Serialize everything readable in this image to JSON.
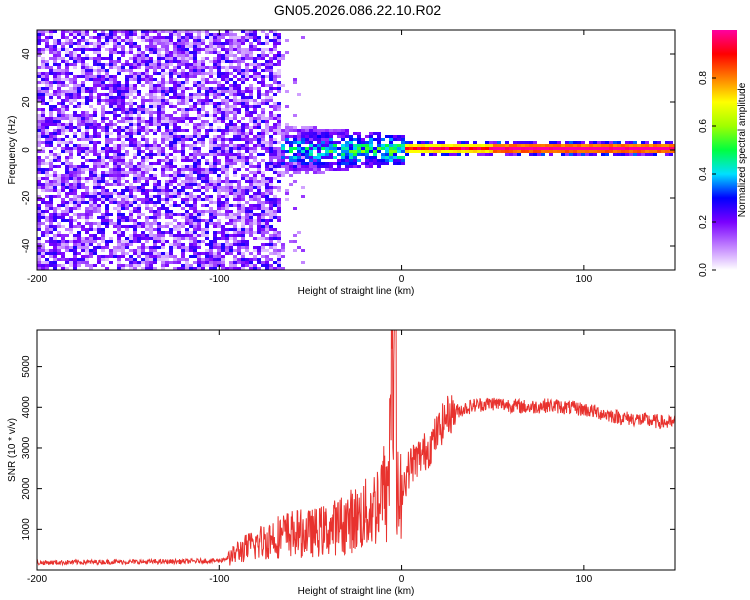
{
  "title": "GN05.2026.086.22.10.R02",
  "colors": {
    "snr_line": "#e8322e",
    "frame": "#000000",
    "background": "#ffffff"
  },
  "chart_data": [
    {
      "type": "heatmap",
      "id": "spectrogram",
      "xlabel": "Height of straight line (km)",
      "ylabel": "Frequency (Hz)",
      "xlim": [
        -200,
        150
      ],
      "ylim": [
        -50,
        50
      ],
      "x_ticks": [
        -200,
        -100,
        0,
        100
      ],
      "x_tick_labels": [
        "-200",
        "-100",
        "0",
        "100"
      ],
      "y_ticks": [
        -40,
        -20,
        0,
        20,
        40
      ],
      "y_tick_labels": [
        "-40",
        "-20",
        "0",
        "20",
        "40"
      ],
      "colorbar": {
        "label": "Normalized spectral amplitude",
        "range": [
          0,
          1
        ],
        "ticks": [
          0,
          0.2,
          0.4,
          0.6,
          0.8
        ],
        "tick_labels": [
          "0.0",
          "0.2",
          "0.4",
          "0.6",
          "0.8"
        ],
        "colormap": [
          "#ffffff",
          "#c080ff",
          "#7a00ff",
          "#0000ff",
          "#00e0ff",
          "#00ff40",
          "#a0ff00",
          "#ffff00",
          "#ff8000",
          "#ff0000",
          "#ff00a0"
        ]
      },
      "regions": [
        {
          "x_range": [
            -200,
            -67
          ],
          "freq_range": [
            -50,
            50
          ],
          "amplitude": "noise 0.05-0.25"
        },
        {
          "x_range": [
            -67,
            0
          ],
          "freq_range": [
            -12,
            8
          ],
          "amplitude": "0.2-0.5 around 0 Hz"
        },
        {
          "x_range": [
            0,
            150
          ],
          "freq_range": [
            -2,
            4
          ],
          "amplitude": "0.6-1.0 narrow tone near 1-2 Hz"
        }
      ]
    },
    {
      "type": "line",
      "id": "snr",
      "xlabel": "Height of straight line (km)",
      "ylabel": "SNR (10 * v/v)",
      "xlim": [
        -200,
        150
      ],
      "ylim": [
        0,
        5900
      ],
      "x_ticks": [
        -200,
        -100,
        0,
        100
      ],
      "x_tick_labels": [
        "-200",
        "-100",
        "0",
        "100"
      ],
      "y_ticks": [
        1000,
        2000,
        3000,
        4000,
        5000
      ],
      "y_tick_labels": [
        "1000",
        "2000",
        "3000",
        "4000",
        "5000"
      ],
      "series": [
        {
          "x": [
            -200,
            -180,
            -160,
            -140,
            -120,
            -100,
            -95,
            -90,
            -80,
            -70,
            -60,
            -50,
            -40,
            -30,
            -20,
            -15,
            -10,
            -8,
            -5,
            -3,
            -2,
            0,
            5,
            10,
            15,
            20,
            25,
            30,
            40,
            50,
            60,
            70,
            80,
            90,
            100,
            110,
            120,
            130,
            140,
            150
          ],
          "y": [
            180,
            190,
            200,
            200,
            210,
            230,
            300,
            500,
            700,
            900,
            1000,
            1000,
            1100,
            1300,
            1500,
            1700,
            2200,
            1800,
            5900,
            2500,
            2000,
            2000,
            2600,
            2800,
            3000,
            3400,
            3800,
            3900,
            4050,
            4100,
            4050,
            4000,
            4050,
            4000,
            3950,
            3850,
            3750,
            3700,
            3650,
            3600
          ]
        }
      ]
    }
  ]
}
